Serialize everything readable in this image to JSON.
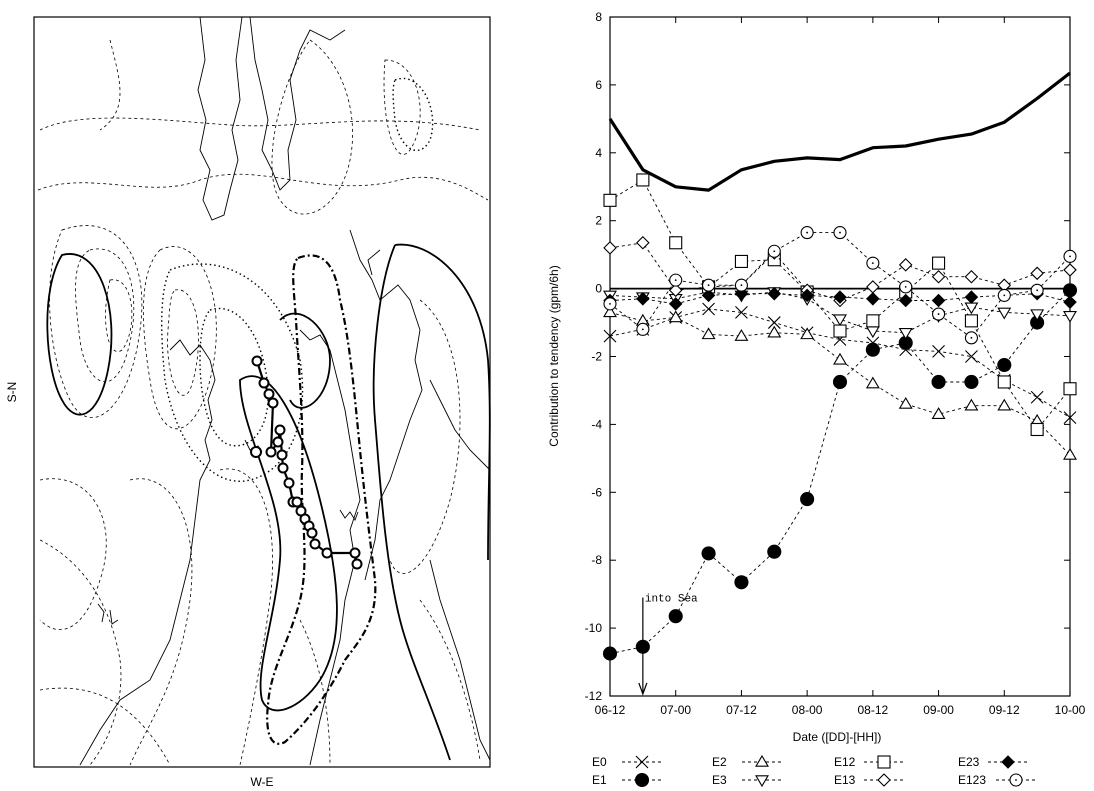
{
  "map": {
    "xlabel": "W-E",
    "ylabel": "S-N"
  },
  "chart_data": {
    "type": "line",
    "xlabel": "Date ([DD]-[HH])",
    "ylabel": "Contribution to tendency (gpm/6h)",
    "xlim": [
      0,
      14
    ],
    "ylim": [
      -12,
      8
    ],
    "xticks": [
      0,
      2,
      4,
      6,
      8,
      10,
      12,
      14
    ],
    "xticklabels": [
      "06-12",
      "07-00",
      "07-12",
      "08-00",
      "08-12",
      "09-00",
      "09-12",
      "10-00"
    ],
    "yticks": [
      -12,
      -10,
      -8,
      -6,
      -4,
      -2,
      0,
      2,
      4,
      6,
      8
    ],
    "x": [
      0,
      1,
      2,
      3,
      4,
      5,
      6,
      7,
      8,
      9,
      10,
      11,
      12,
      13,
      14
    ],
    "total": [
      5.0,
      3.5,
      3.0,
      2.9,
      3.5,
      3.75,
      3.85,
      3.8,
      4.15,
      4.2,
      4.4,
      4.55,
      4.9,
      5.6,
      6.35
    ],
    "annotation": "into Sea",
    "annotation_x": 1,
    "series": [
      {
        "name": "E0",
        "marker": "x",
        "values": [
          -1.4,
          -1.2,
          -0.85,
          -0.6,
          -0.7,
          -1.0,
          -1.3,
          -1.5,
          -1.6,
          -1.8,
          -1.85,
          -2.0,
          -2.7,
          -3.2,
          -3.8
        ]
      },
      {
        "name": "E1",
        "marker": "filled-circle",
        "values": [
          -10.75,
          -10.55,
          -9.65,
          -7.8,
          -8.65,
          -7.75,
          -6.2,
          -2.75,
          -1.8,
          -1.6,
          -2.75,
          -2.75,
          -2.25,
          -1.0,
          -0.05
        ]
      },
      {
        "name": "E2",
        "marker": "triangle-up",
        "values": [
          -0.7,
          -0.95,
          -0.85,
          -1.35,
          -1.4,
          -1.3,
          -1.35,
          -2.1,
          -2.8,
          -3.4,
          -3.7,
          -3.45,
          -3.45,
          -3.9,
          -4.9
        ]
      },
      {
        "name": "E3",
        "marker": "triangle-down",
        "values": [
          -0.2,
          -0.25,
          -0.3,
          -0.1,
          -0.2,
          -0.1,
          -0.3,
          -0.9,
          -1.25,
          -1.3,
          -0.8,
          -0.55,
          -0.7,
          -0.75,
          -0.8
        ]
      },
      {
        "name": "E12",
        "marker": "square",
        "values": [
          2.6,
          3.2,
          1.35,
          0.05,
          0.8,
          0.85,
          -0.1,
          -1.25,
          -0.95,
          -0.1,
          0.75,
          -0.95,
          -2.75,
          -4.15,
          -2.95
        ]
      },
      {
        "name": "E13",
        "marker": "diamond",
        "values": [
          1.2,
          1.35,
          -0.05,
          0.05,
          0.1,
          1.05,
          -0.05,
          -0.35,
          0.05,
          0.7,
          0.35,
          0.35,
          0.1,
          0.45,
          0.55
        ]
      },
      {
        "name": "E23",
        "marker": "filled-diamond",
        "values": [
          -0.35,
          -0.3,
          -0.45,
          -0.2,
          -0.15,
          -0.15,
          -0.2,
          -0.25,
          -0.3,
          -0.35,
          -0.35,
          -0.25,
          -0.2,
          -0.15,
          -0.4
        ]
      },
      {
        "name": "E123",
        "marker": "dot-circle",
        "values": [
          -0.45,
          -1.2,
          0.25,
          0.1,
          0.1,
          1.1,
          1.65,
          1.65,
          0.75,
          0.05,
          -0.75,
          -1.45,
          -0.2,
          -0.05,
          0.95
        ]
      }
    ],
    "legend_placement": "bottom"
  }
}
